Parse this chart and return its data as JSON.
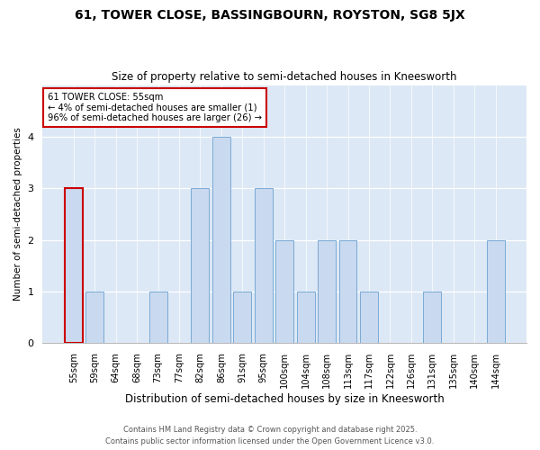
{
  "title_line1": "61, TOWER CLOSE, BASSINGBOURN, ROYSTON, SG8 5JX",
  "title_line2": "Size of property relative to semi-detached houses in Kneesworth",
  "xlabel": "Distribution of semi-detached houses by size in Kneesworth",
  "ylabel": "Number of semi-detached properties",
  "categories": [
    "55sqm",
    "59sqm",
    "64sqm",
    "68sqm",
    "73sqm",
    "77sqm",
    "82sqm",
    "86sqm",
    "91sqm",
    "95sqm",
    "100sqm",
    "104sqm",
    "108sqm",
    "113sqm",
    "117sqm",
    "122sqm",
    "126sqm",
    "131sqm",
    "135sqm",
    "140sqm",
    "144sqm"
  ],
  "values": [
    3,
    1,
    0,
    0,
    1,
    0,
    3,
    4,
    1,
    3,
    2,
    1,
    2,
    2,
    1,
    0,
    0,
    1,
    0,
    0,
    2
  ],
  "bar_color": "#c9d9f0",
  "bar_edge_color": "#7aaad4",
  "highlight_index": 0,
  "highlight_edge_color": "#cc0000",
  "annotation_title": "61 TOWER CLOSE: 55sqm",
  "annotation_line1": "← 4% of semi-detached houses are smaller (1)",
  "annotation_line2": "96% of semi-detached houses are larger (26) →",
  "annotation_box_color": "#ffffff",
  "annotation_box_edge_color": "#cc0000",
  "ylim": [
    0,
    5
  ],
  "yticks": [
    0,
    1,
    2,
    3,
    4
  ],
  "plot_bg_color": "#dce8f5",
  "fig_bg_color": "#ffffff",
  "grid_color": "#ffffff",
  "footer_line1": "Contains HM Land Registry data © Crown copyright and database right 2025.",
  "footer_line2": "Contains public sector information licensed under the Open Government Licence v3.0."
}
